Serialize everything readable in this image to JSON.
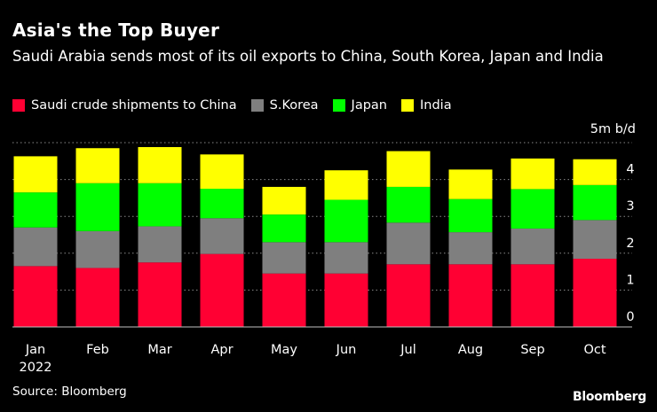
{
  "header": {
    "title": "Asia's the Top Buyer",
    "subtitle": "Saudi Arabia sends most of its oil exports to China, South Korea, Japan and India"
  },
  "footer": {
    "source": "Source: Bloomberg",
    "brand": "Bloomberg"
  },
  "chart_data": {
    "type": "bar",
    "stacked": true,
    "title": "Asia's the Top Buyer",
    "unit_label": "5m b/d",
    "categories": [
      "Jan",
      "Feb",
      "Mar",
      "Apr",
      "May",
      "Jun",
      "Jul",
      "Aug",
      "Sep",
      "Oct"
    ],
    "category_sublabels": [
      "2022",
      "",
      "",
      "",
      "",
      "",
      "",
      "",
      "",
      ""
    ],
    "series": [
      {
        "name": "Saudi crude shipments to China",
        "color": "#ff0033",
        "values": [
          1.65,
          1.6,
          1.75,
          1.98,
          1.45,
          1.45,
          1.7,
          1.7,
          1.7,
          1.85
        ]
      },
      {
        "name": "S.Korea",
        "color": "#7f7f7f",
        "values": [
          1.05,
          1.0,
          0.98,
          0.97,
          0.85,
          0.85,
          1.13,
          0.87,
          0.97,
          1.05
        ]
      },
      {
        "name": "Japan",
        "color": "#00ff00",
        "values": [
          0.95,
          1.3,
          1.17,
          0.8,
          0.75,
          1.15,
          0.97,
          0.9,
          1.07,
          0.95
        ]
      },
      {
        "name": "India",
        "color": "#ffff00",
        "values": [
          0.98,
          0.95,
          0.98,
          0.93,
          0.75,
          0.8,
          0.97,
          0.8,
          0.83,
          0.7
        ]
      }
    ],
    "yticks": [
      0,
      1,
      2,
      3,
      4
    ],
    "ylim": [
      0,
      5
    ],
    "ylabel": "",
    "xlabel": "",
    "grid": true,
    "yaxis_side": "right"
  }
}
